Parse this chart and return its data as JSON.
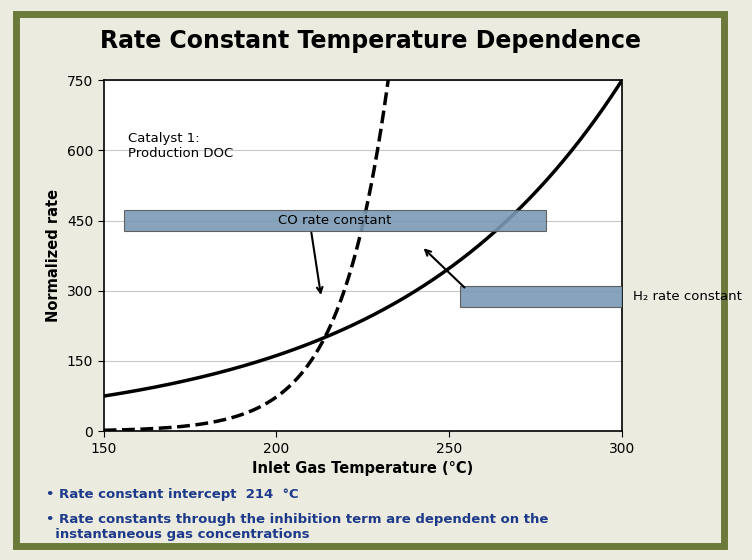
{
  "title": "Rate Constant Temperature Dependence",
  "xlabel": "Inlet Gas Temperature (°C)",
  "ylabel": "Normalized rate",
  "xlim": [
    150,
    300
  ],
  "ylim": [
    0,
    750
  ],
  "yticks": [
    0,
    150,
    300,
    450,
    600,
    750
  ],
  "xticks": [
    150,
    200,
    250,
    300
  ],
  "annotation_text": "Catalyst 1:\nProduction DOC",
  "co_label": "CO rate constant",
  "h2_label": "H₂ rate constant",
  "bullet1": "• Rate constant intercept  214  °C",
  "bullet2": "• Rate constants through the inhibition term are dependent on the\n  instantaneous gas concentrations",
  "background_color": "#ebebdf",
  "border_color": "#6b7a3a",
  "title_color": "#000000",
  "bullet_color": "#1e3a8a",
  "co_curve_color": "#000000",
  "h2_curve_color": "#000000",
  "label_box_color": "#7a9ab5",
  "grid_color": "#c8c8c8"
}
